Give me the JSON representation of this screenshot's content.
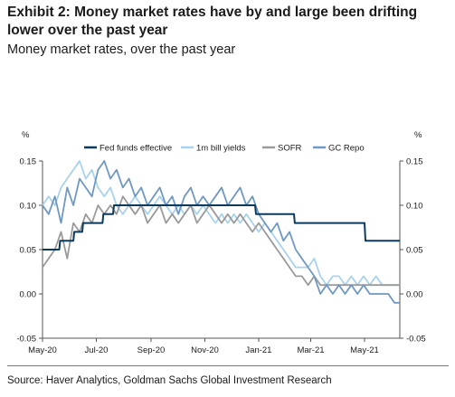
{
  "title": "Exhibit 2: Money market rates have by and large been drifting lower over the past year",
  "subtitle": "Money market rates, over the past year",
  "source": "Source: Haver Analytics, Goldman Sachs Global Investment Research",
  "chart_data": {
    "type": "line",
    "ylabel_left": "%",
    "ylabel_right": "%",
    "ylim": [
      -0.05,
      0.15
    ],
    "yticks": [
      "0.15",
      "0.10",
      "0.05",
      "0.00",
      "-0.05"
    ],
    "xlim": [
      "2020-05-01",
      "2021-06-10"
    ],
    "xticks": [
      "May-20",
      "Jul-20",
      "Sep-20",
      "Nov-20",
      "Jan-21",
      "Mar-21",
      "May-21"
    ],
    "grid": false,
    "legend_position": "top",
    "series": [
      {
        "name": "Fed funds effective",
        "color": "#0b3a5e",
        "points": [
          [
            "2020-05-01",
            0.05
          ],
          [
            "2020-05-20",
            0.05
          ],
          [
            "2020-05-21",
            0.06
          ],
          [
            "2020-06-05",
            0.06
          ],
          [
            "2020-06-06",
            0.07
          ],
          [
            "2020-06-15",
            0.07
          ],
          [
            "2020-06-16",
            0.08
          ],
          [
            "2020-07-08",
            0.08
          ],
          [
            "2020-07-09",
            0.09
          ],
          [
            "2020-07-20",
            0.09
          ],
          [
            "2020-07-21",
            0.1
          ],
          [
            "2020-12-28",
            0.1
          ],
          [
            "2020-12-29",
            0.09
          ],
          [
            "2021-02-10",
            0.09
          ],
          [
            "2021-02-11",
            0.08
          ],
          [
            "2021-05-01",
            0.08
          ],
          [
            "2021-05-02",
            0.06
          ],
          [
            "2021-06-10",
            0.06
          ]
        ]
      },
      {
        "name": "1m bill yields",
        "color": "#a9d2ec",
        "points": [
          [
            "2020-05-01",
            0.1
          ],
          [
            "2020-05-08",
            0.11
          ],
          [
            "2020-05-15",
            0.1
          ],
          [
            "2020-05-22",
            0.12
          ],
          [
            "2020-05-29",
            0.13
          ],
          [
            "2020-06-05",
            0.14
          ],
          [
            "2020-06-12",
            0.15
          ],
          [
            "2020-06-19",
            0.13
          ],
          [
            "2020-06-26",
            0.14
          ],
          [
            "2020-07-03",
            0.12
          ],
          [
            "2020-07-10",
            0.11
          ],
          [
            "2020-07-17",
            0.12
          ],
          [
            "2020-07-24",
            0.1
          ],
          [
            "2020-07-31",
            0.09
          ],
          [
            "2020-08-07",
            0.1
          ],
          [
            "2020-08-14",
            0.11
          ],
          [
            "2020-08-21",
            0.1
          ],
          [
            "2020-08-28",
            0.09
          ],
          [
            "2020-09-04",
            0.1
          ],
          [
            "2020-09-11",
            0.11
          ],
          [
            "2020-09-18",
            0.1
          ],
          [
            "2020-09-25",
            0.09
          ],
          [
            "2020-10-02",
            0.1
          ],
          [
            "2020-10-09",
            0.09
          ],
          [
            "2020-10-16",
            0.1
          ],
          [
            "2020-10-23",
            0.09
          ],
          [
            "2020-10-30",
            0.1
          ],
          [
            "2020-11-06",
            0.09
          ],
          [
            "2020-11-13",
            0.08
          ],
          [
            "2020-11-20",
            0.09
          ],
          [
            "2020-11-27",
            0.08
          ],
          [
            "2020-12-04",
            0.09
          ],
          [
            "2020-12-11",
            0.08
          ],
          [
            "2020-12-18",
            0.09
          ],
          [
            "2020-12-25",
            0.08
          ],
          [
            "2021-01-01",
            0.07
          ],
          [
            "2021-01-08",
            0.08
          ],
          [
            "2021-01-15",
            0.07
          ],
          [
            "2021-01-22",
            0.06
          ],
          [
            "2021-01-29",
            0.05
          ],
          [
            "2021-02-05",
            0.04
          ],
          [
            "2021-02-12",
            0.03
          ],
          [
            "2021-02-19",
            0.03
          ],
          [
            "2021-02-26",
            0.03
          ],
          [
            "2021-03-05",
            0.04
          ],
          [
            "2021-03-12",
            0.02
          ],
          [
            "2021-03-19",
            0.01
          ],
          [
            "2021-03-26",
            0.02
          ],
          [
            "2021-04-02",
            0.02
          ],
          [
            "2021-04-09",
            0.01
          ],
          [
            "2021-04-16",
            0.02
          ],
          [
            "2021-04-23",
            0.01
          ],
          [
            "2021-04-30",
            0.02
          ],
          [
            "2021-05-07",
            0.01
          ],
          [
            "2021-05-14",
            0.02
          ],
          [
            "2021-05-21",
            0.01
          ],
          [
            "2021-05-28",
            0.01
          ],
          [
            "2021-06-04",
            0.01
          ],
          [
            "2021-06-10",
            0.01
          ]
        ]
      },
      {
        "name": "SOFR",
        "color": "#9a9a9a",
        "points": [
          [
            "2020-05-01",
            0.03
          ],
          [
            "2020-05-08",
            0.04
          ],
          [
            "2020-05-15",
            0.05
          ],
          [
            "2020-05-22",
            0.07
          ],
          [
            "2020-05-29",
            0.04
          ],
          [
            "2020-06-05",
            0.08
          ],
          [
            "2020-06-12",
            0.07
          ],
          [
            "2020-06-19",
            0.09
          ],
          [
            "2020-06-26",
            0.08
          ],
          [
            "2020-07-03",
            0.1
          ],
          [
            "2020-07-10",
            0.09
          ],
          [
            "2020-07-17",
            0.1
          ],
          [
            "2020-07-24",
            0.09
          ],
          [
            "2020-07-31",
            0.11
          ],
          [
            "2020-08-07",
            0.1
          ],
          [
            "2020-08-14",
            0.09
          ],
          [
            "2020-08-21",
            0.1
          ],
          [
            "2020-08-28",
            0.08
          ],
          [
            "2020-09-04",
            0.09
          ],
          [
            "2020-09-11",
            0.1
          ],
          [
            "2020-09-18",
            0.08
          ],
          [
            "2020-09-25",
            0.09
          ],
          [
            "2020-10-02",
            0.08
          ],
          [
            "2020-10-09",
            0.09
          ],
          [
            "2020-10-16",
            0.1
          ],
          [
            "2020-10-23",
            0.08
          ],
          [
            "2020-10-30",
            0.09
          ],
          [
            "2020-11-06",
            0.1
          ],
          [
            "2020-11-13",
            0.09
          ],
          [
            "2020-11-20",
            0.08
          ],
          [
            "2020-11-27",
            0.09
          ],
          [
            "2020-12-04",
            0.08
          ],
          [
            "2020-12-11",
            0.09
          ],
          [
            "2020-12-18",
            0.08
          ],
          [
            "2020-12-25",
            0.07
          ],
          [
            "2021-01-01",
            0.08
          ],
          [
            "2021-01-08",
            0.07
          ],
          [
            "2021-01-15",
            0.06
          ],
          [
            "2021-01-22",
            0.05
          ],
          [
            "2021-01-29",
            0.04
          ],
          [
            "2021-02-05",
            0.03
          ],
          [
            "2021-02-12",
            0.02
          ],
          [
            "2021-02-19",
            0.02
          ],
          [
            "2021-02-26",
            0.01
          ],
          [
            "2021-03-05",
            0.02
          ],
          [
            "2021-03-12",
            0.01
          ],
          [
            "2021-03-19",
            0.01
          ],
          [
            "2021-03-26",
            0.01
          ],
          [
            "2021-04-02",
            0.01
          ],
          [
            "2021-04-09",
            0.01
          ],
          [
            "2021-04-16",
            0.01
          ],
          [
            "2021-04-23",
            0.01
          ],
          [
            "2021-04-30",
            0.01
          ],
          [
            "2021-05-07",
            0.01
          ],
          [
            "2021-05-14",
            0.01
          ],
          [
            "2021-05-21",
            0.01
          ],
          [
            "2021-05-28",
            0.01
          ],
          [
            "2021-06-04",
            0.01
          ],
          [
            "2021-06-10",
            0.01
          ]
        ]
      },
      {
        "name": "GC Repo",
        "color": "#6f98c4",
        "points": [
          [
            "2020-05-01",
            0.1
          ],
          [
            "2020-05-08",
            0.09
          ],
          [
            "2020-05-15",
            0.11
          ],
          [
            "2020-05-22",
            0.08
          ],
          [
            "2020-05-29",
            0.12
          ],
          [
            "2020-06-05",
            0.1
          ],
          [
            "2020-06-12",
            0.13
          ],
          [
            "2020-06-19",
            0.12
          ],
          [
            "2020-06-26",
            0.11
          ],
          [
            "2020-07-03",
            0.14
          ],
          [
            "2020-07-10",
            0.15
          ],
          [
            "2020-07-17",
            0.13
          ],
          [
            "2020-07-24",
            0.14
          ],
          [
            "2020-07-31",
            0.12
          ],
          [
            "2020-08-07",
            0.13
          ],
          [
            "2020-08-14",
            0.11
          ],
          [
            "2020-08-21",
            0.12
          ],
          [
            "2020-08-28",
            0.1
          ],
          [
            "2020-09-04",
            0.11
          ],
          [
            "2020-09-11",
            0.12
          ],
          [
            "2020-09-18",
            0.1
          ],
          [
            "2020-09-25",
            0.11
          ],
          [
            "2020-10-02",
            0.09
          ],
          [
            "2020-10-09",
            0.11
          ],
          [
            "2020-10-16",
            0.12
          ],
          [
            "2020-10-23",
            0.1
          ],
          [
            "2020-10-30",
            0.11
          ],
          [
            "2020-11-06",
            0.1
          ],
          [
            "2020-11-13",
            0.11
          ],
          [
            "2020-11-20",
            0.12
          ],
          [
            "2020-11-27",
            0.1
          ],
          [
            "2020-12-04",
            0.11
          ],
          [
            "2020-12-11",
            0.12
          ],
          [
            "2020-12-18",
            0.1
          ],
          [
            "2020-12-25",
            0.11
          ],
          [
            "2021-01-01",
            0.09
          ],
          [
            "2021-01-08",
            0.08
          ],
          [
            "2021-01-15",
            0.07
          ],
          [
            "2021-01-22",
            0.08
          ],
          [
            "2021-01-29",
            0.06
          ],
          [
            "2021-02-05",
            0.07
          ],
          [
            "2021-02-12",
            0.05
          ],
          [
            "2021-02-19",
            0.04
          ],
          [
            "2021-02-26",
            0.03
          ],
          [
            "2021-03-05",
            0.02
          ],
          [
            "2021-03-12",
            0.0
          ],
          [
            "2021-03-19",
            0.01
          ],
          [
            "2021-03-26",
            0.0
          ],
          [
            "2021-04-02",
            0.01
          ],
          [
            "2021-04-09",
            0.0
          ],
          [
            "2021-04-16",
            0.01
          ],
          [
            "2021-04-23",
            0.0
          ],
          [
            "2021-04-30",
            0.01
          ],
          [
            "2021-05-07",
            0.0
          ],
          [
            "2021-05-14",
            0.0
          ],
          [
            "2021-05-21",
            0.0
          ],
          [
            "2021-05-28",
            0.0
          ],
          [
            "2021-06-04",
            -0.01
          ],
          [
            "2021-06-10",
            -0.01
          ]
        ]
      }
    ]
  }
}
